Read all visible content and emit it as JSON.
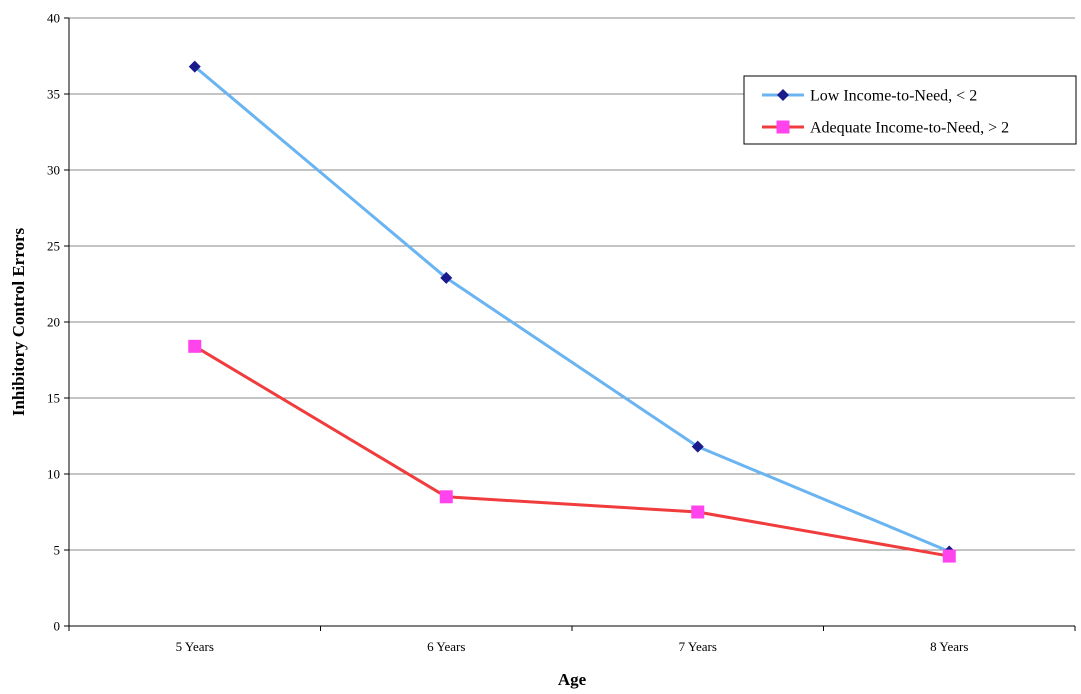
{
  "chart_data": {
    "type": "line",
    "title": "",
    "xlabel": "Age",
    "ylabel": "Inhibitory Control Errors",
    "categories": [
      "5 Years",
      "6 Years",
      "7 Years",
      "8 Years"
    ],
    "ylim": [
      0,
      40
    ],
    "ytick_step": 5,
    "grid": true,
    "legend_position": "top-right",
    "series": [
      {
        "name": "Low Income-to-Need, < 2",
        "values": [
          36.8,
          22.9,
          11.8,
          4.9
        ],
        "line_color": "#6ab4f2",
        "marker": "diamond",
        "marker_color": "#1a1a8c"
      },
      {
        "name": "Adequate Income-to-Need, > 2",
        "values": [
          18.4,
          8.5,
          7.5,
          4.6
        ],
        "line_color": "#f03c3c",
        "marker": "square",
        "marker_color": "#ff44ee"
      }
    ]
  }
}
